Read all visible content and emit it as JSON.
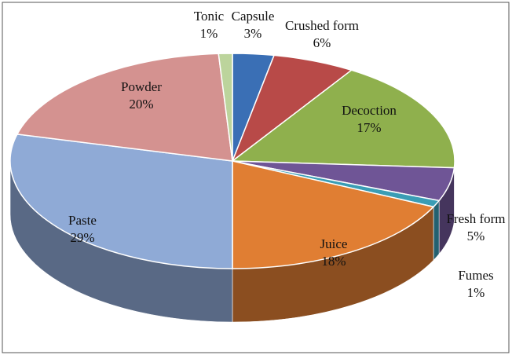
{
  "chart_data": {
    "type": "pie",
    "categories": [
      "Capsule",
      "Crushed form",
      "Decoction",
      "Fresh form",
      "Fumes",
      "Juice",
      "Paste",
      "Powder",
      "Tonic"
    ],
    "values": [
      3,
      6,
      17,
      5,
      1,
      18,
      29,
      20,
      1
    ],
    "value_labels": [
      "3%",
      "6%",
      "17%",
      "5%",
      "1%",
      "18%",
      "29%",
      "20%",
      "1%"
    ],
    "colors": [
      "#3a6fb5",
      "#b84a48",
      "#8fb04d",
      "#6f5596",
      "#3a9db5",
      "#e07e33",
      "#8faad6",
      "#d49290",
      "#bcd49c"
    ]
  }
}
